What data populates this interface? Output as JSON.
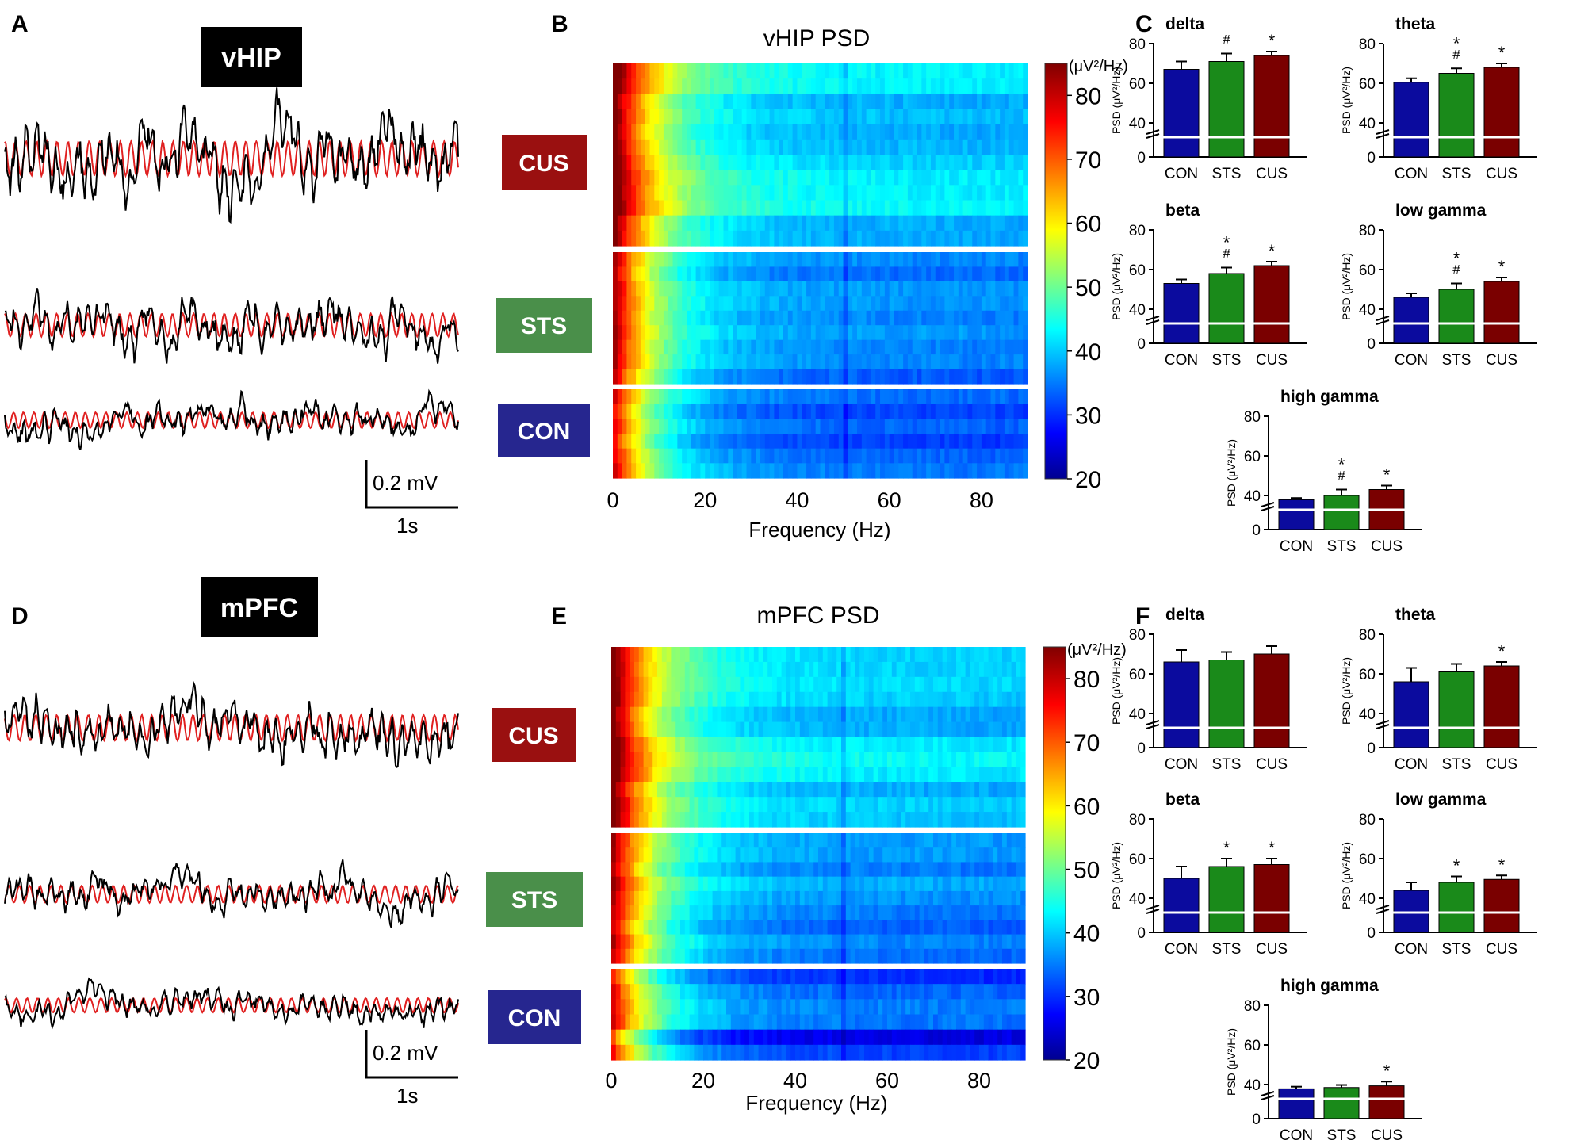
{
  "colors": {
    "CON": "#0b0b9e",
    "STS": "#1a8a1a",
    "CUS": "#7a0000",
    "CON_label_bg": "#26268f",
    "STS_label_bg": "#4a8f4a",
    "CUS_label_bg": "#9a1010",
    "trace_raw": "#000000",
    "trace_filtered": "#e02020"
  },
  "panels": {
    "A": {
      "letter": "A",
      "region": "vHIP",
      "scale_mv": "0.2 mV",
      "scale_s": "1s"
    },
    "B": {
      "letter": "B"
    },
    "C": {
      "letter": "C"
    },
    "D": {
      "letter": "D",
      "region": "mPFC",
      "scale_mv": "0.2 mV",
      "scale_s": "1s"
    },
    "E": {
      "letter": "E"
    },
    "F": {
      "letter": "F"
    }
  },
  "groups": [
    "CUS",
    "STS",
    "CON"
  ],
  "chart_data": [
    {
      "id": "vhip_psd_heatmap",
      "type": "heatmap",
      "title": "vHIP PSD",
      "xlabel": "Frequency (Hz)",
      "x_ticks": [
        "0",
        "20",
        "40",
        "60",
        "80"
      ],
      "xlim": [
        0,
        90
      ],
      "colorbar_unit": "(μV²/Hz)",
      "colorbar_ticks": [
        "80",
        "70",
        "60",
        "50",
        "40",
        "30",
        "20"
      ],
      "colorbar_range": [
        20,
        85
      ],
      "group_rows": {
        "CUS": 12,
        "STS": 9,
        "CON": 6
      }
    },
    {
      "id": "mpfc_psd_heatmap",
      "type": "heatmap",
      "title": "mPFC PSD",
      "xlabel": "Frequency (Hz)",
      "x_ticks": [
        "0",
        "20",
        "40",
        "60",
        "80"
      ],
      "xlim": [
        0,
        90
      ],
      "colorbar_unit": "(μV²/Hz)",
      "colorbar_ticks": [
        "80",
        "70",
        "60",
        "50",
        "40",
        "30",
        "20"
      ],
      "colorbar_range": [
        20,
        85
      ],
      "group_rows": {
        "CUS": 12,
        "STS": 9,
        "CON": 6
      }
    },
    {
      "id": "vhip_delta",
      "type": "bar",
      "title": "delta",
      "ylabel": "PSD (μV²/Hz)",
      "yticks": [
        "0",
        "40",
        "60",
        "80"
      ],
      "ylim": [
        0,
        80
      ],
      "categories": [
        "CON",
        "STS",
        "CUS"
      ],
      "values": [
        67,
        71,
        74
      ],
      "errors": [
        4,
        4,
        2
      ],
      "marks": [
        "",
        "#",
        "*"
      ]
    },
    {
      "id": "vhip_theta",
      "type": "bar",
      "title": "theta",
      "ylabel": "PSD (μV²/Hz)",
      "yticks": [
        "0",
        "40",
        "60",
        "80"
      ],
      "ylim": [
        0,
        80
      ],
      "categories": [
        "CON",
        "STS",
        "CUS"
      ],
      "values": [
        60.5,
        65,
        68
      ],
      "errors": [
        2,
        2.5,
        2
      ],
      "marks": [
        "",
        "*#",
        "*"
      ]
    },
    {
      "id": "vhip_beta",
      "type": "bar",
      "title": "beta",
      "ylabel": "PSD (μV²/Hz)",
      "yticks": [
        "0",
        "40",
        "60",
        "80"
      ],
      "ylim": [
        0,
        80
      ],
      "categories": [
        "CON",
        "STS",
        "CUS"
      ],
      "values": [
        53,
        58,
        62
      ],
      "errors": [
        2,
        3,
        2
      ],
      "marks": [
        "",
        "*#",
        "*"
      ]
    },
    {
      "id": "vhip_lowgamma",
      "type": "bar",
      "title": "low gamma",
      "ylabel": "PSD (μV²/Hz)",
      "yticks": [
        "0",
        "40",
        "60",
        "80"
      ],
      "ylim": [
        0,
        80
      ],
      "categories": [
        "CON",
        "STS",
        "CUS"
      ],
      "values": [
        46,
        50,
        54
      ],
      "errors": [
        2,
        3,
        2
      ],
      "marks": [
        "",
        "*#",
        "*"
      ]
    },
    {
      "id": "vhip_highgamma",
      "type": "bar",
      "title": "high gamma",
      "ylabel": "PSD (μV²/Hz)",
      "yticks": [
        "0",
        "40",
        "60",
        "80"
      ],
      "ylim": [
        0,
        80
      ],
      "categories": [
        "CON",
        "STS",
        "CUS"
      ],
      "values": [
        35,
        40,
        43
      ],
      "errors": [
        2,
        3,
        2
      ],
      "marks": [
        "",
        "*#",
        "*"
      ]
    },
    {
      "id": "mpfc_delta",
      "type": "bar",
      "title": "delta",
      "ylabel": "PSD (μV²/Hz)",
      "yticks": [
        "0",
        "40",
        "60",
        "80"
      ],
      "ylim": [
        0,
        80
      ],
      "categories": [
        "CON",
        "STS",
        "CUS"
      ],
      "values": [
        66,
        67,
        70
      ],
      "errors": [
        6,
        4,
        4
      ],
      "marks": [
        "",
        "",
        ""
      ]
    },
    {
      "id": "mpfc_theta",
      "type": "bar",
      "title": "theta",
      "ylabel": "PSD (μV²/Hz)",
      "yticks": [
        "0",
        "40",
        "60",
        "80"
      ],
      "ylim": [
        0,
        80
      ],
      "categories": [
        "CON",
        "STS",
        "CUS"
      ],
      "values": [
        56,
        61,
        64
      ],
      "errors": [
        7,
        4,
        2
      ],
      "marks": [
        "",
        "",
        "*"
      ]
    },
    {
      "id": "mpfc_beta",
      "type": "bar",
      "title": "beta",
      "ylabel": "PSD (μV²/Hz)",
      "yticks": [
        "0",
        "40",
        "60",
        "80"
      ],
      "ylim": [
        0,
        80
      ],
      "categories": [
        "CON",
        "STS",
        "CUS"
      ],
      "values": [
        50,
        56,
        57
      ],
      "errors": [
        6,
        4,
        3
      ],
      "marks": [
        "",
        "*",
        "*"
      ]
    },
    {
      "id": "mpfc_lowgamma",
      "type": "bar",
      "title": "low gamma",
      "ylabel": "PSD (μV²/Hz)",
      "yticks": [
        "0",
        "40",
        "60",
        "80"
      ],
      "ylim": [
        0,
        80
      ],
      "categories": [
        "CON",
        "STS",
        "CUS"
      ],
      "values": [
        44,
        48,
        49.5
      ],
      "errors": [
        4,
        3,
        2
      ],
      "marks": [
        "",
        "*",
        "*"
      ]
    },
    {
      "id": "mpfc_highgamma",
      "type": "bar",
      "title": "high gamma",
      "ylabel": "PSD (μV²/Hz)",
      "yticks": [
        "0",
        "40",
        "60",
        "80"
      ],
      "ylim": [
        0,
        80
      ],
      "categories": [
        "CON",
        "STS",
        "CUS"
      ],
      "values": [
        35,
        36.5,
        38.5
      ],
      "errors": [
        2.5,
        3,
        3
      ],
      "marks": [
        "",
        "",
        "*"
      ]
    }
  ]
}
